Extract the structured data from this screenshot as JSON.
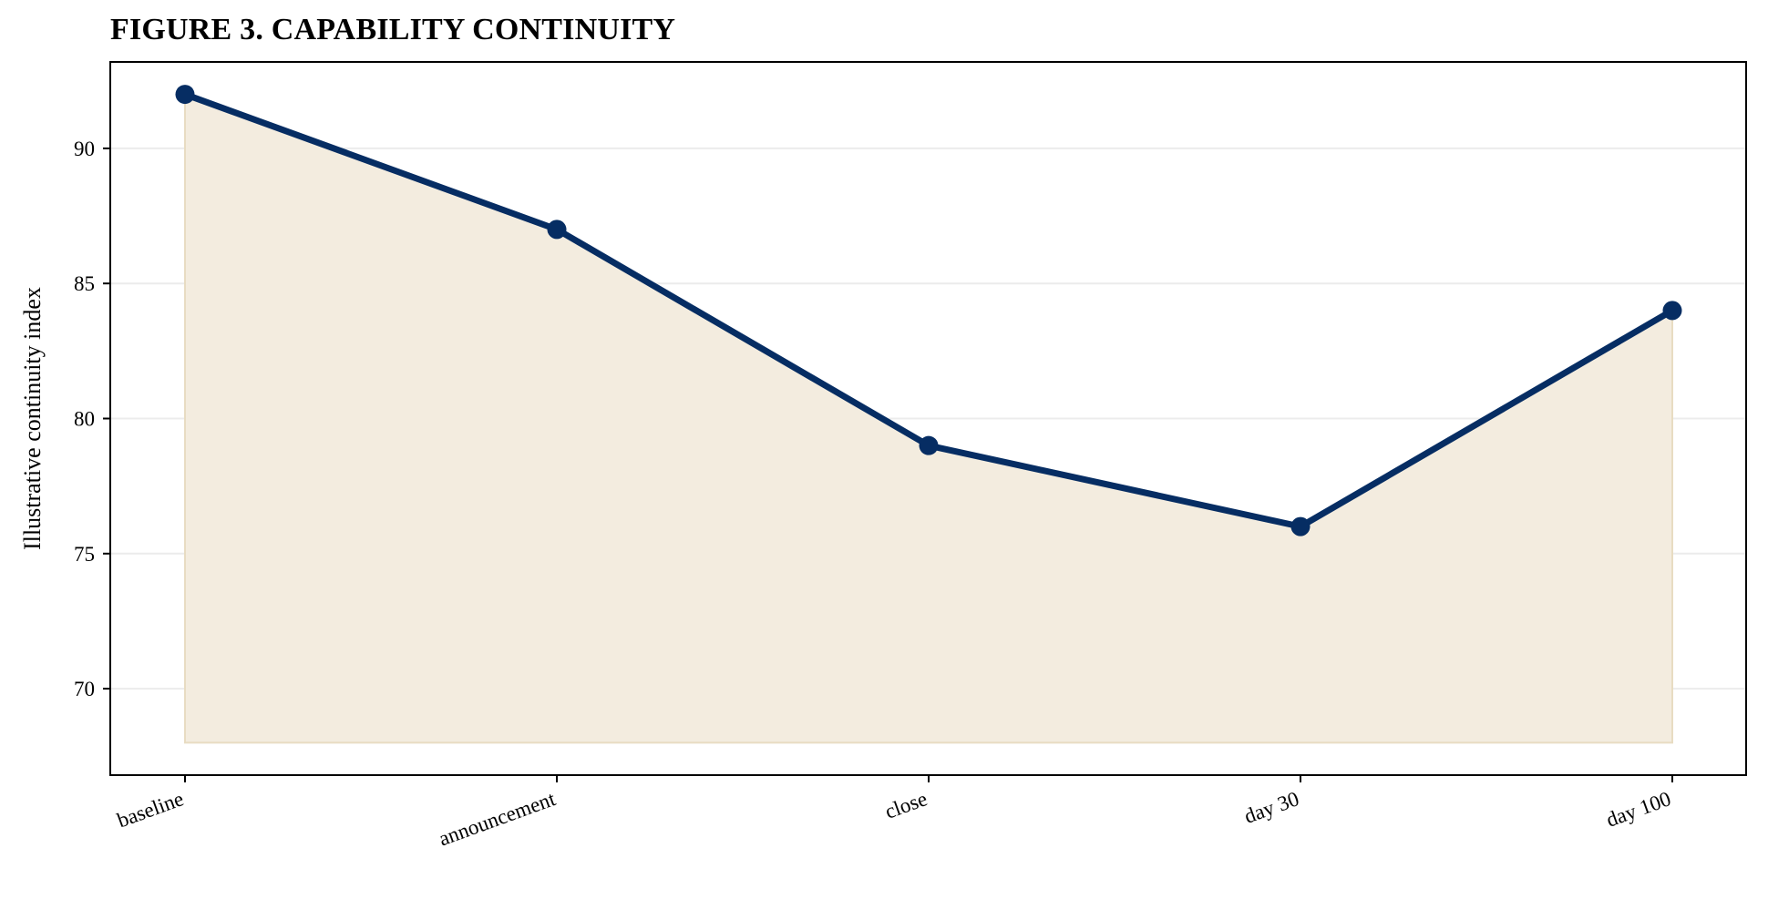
{
  "chart_data": {
    "type": "area",
    "title": "FIGURE 3. CAPABILITY CONTINUITY",
    "xlabel": "",
    "ylabel": "Illustrative continuity index",
    "categories": [
      "baseline",
      "announcement",
      "close",
      "day 30",
      "day 100"
    ],
    "series": [
      {
        "values": [
          92,
          87,
          79,
          76,
          84
        ]
      }
    ],
    "fill_baseline": 68,
    "ylim": [
      66.8,
      93.2
    ],
    "yticks": [
      70,
      75,
      80,
      85,
      90
    ],
    "grid": "horizontal",
    "colors": {
      "line": "#062d63",
      "fill": "#f3ecdf",
      "fill_edge": "#e8dcc2",
      "grid": "#ececec",
      "axis": "#000000"
    }
  }
}
